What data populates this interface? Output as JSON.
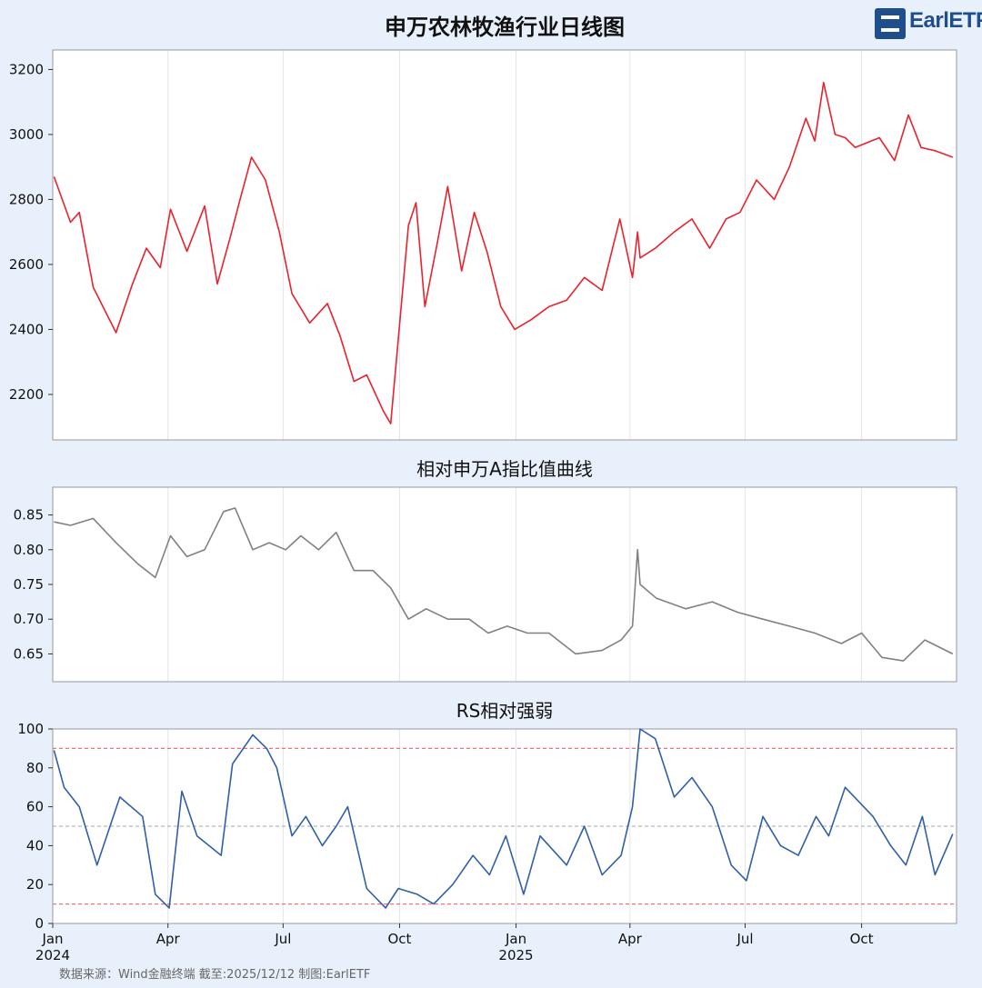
{
  "title": "申万农林牧渔行业日线图",
  "logo_text": "EarlETF",
  "footer": "数据来源：Wind金融终端 截至:2025/12/12 制图:EarlETF",
  "colors": {
    "background": "#e8f1fb",
    "price_line": "#e8222e",
    "ratio_line": "#808080",
    "rs_line": "#2f5fa8",
    "threshold_line": "#f07080",
    "mid_line": "#b8b8b8",
    "grid": "#e6e6e6"
  },
  "chart_data": [
    {
      "type": "line",
      "title": "申万农林牧渔行业日线图",
      "ylim": [
        2060,
        3260
      ],
      "yticks": [
        2200,
        2400,
        2600,
        2800,
        3000,
        3200
      ],
      "x": [
        "2024-01-02",
        "2024-01-15",
        "2024-01-22",
        "2024-02-02",
        "2024-02-20",
        "2024-03-04",
        "2024-03-15",
        "2024-03-26",
        "2024-04-03",
        "2024-04-16",
        "2024-04-30",
        "2024-05-10",
        "2024-05-20",
        "2024-05-28",
        "2024-06-06",
        "2024-06-17",
        "2024-06-28",
        "2024-07-08",
        "2024-07-22",
        "2024-08-05",
        "2024-08-15",
        "2024-08-26",
        "2024-09-05",
        "2024-09-18",
        "2024-09-24",
        "2024-10-08",
        "2024-10-14",
        "2024-10-21",
        "2024-10-31",
        "2024-11-08",
        "2024-11-19",
        "2024-11-29",
        "2024-12-09",
        "2024-12-20",
        "2024-12-31",
        "2025-01-13",
        "2025-01-27",
        "2025-02-10",
        "2025-02-24",
        "2025-03-10",
        "2025-03-24",
        "2025-04-03",
        "2025-04-07",
        "2025-04-09",
        "2025-04-21",
        "2025-05-06",
        "2025-05-20",
        "2025-06-03",
        "2025-06-16",
        "2025-06-27",
        "2025-07-10",
        "2025-07-24",
        "2025-08-05",
        "2025-08-18",
        "2025-08-25",
        "2025-09-01",
        "2025-09-10",
        "2025-09-18",
        "2025-09-26",
        "2025-10-15",
        "2025-10-27",
        "2025-11-07",
        "2025-11-17",
        "2025-11-28",
        "2025-12-12"
      ],
      "series": [
        {
          "values": [
            2870,
            2730,
            2760,
            2530,
            2390,
            2540,
            2650,
            2590,
            2770,
            2640,
            2780,
            2540,
            2680,
            2800,
            2930,
            2860,
            2700,
            2510,
            2420,
            2480,
            2380,
            2240,
            2260,
            2150,
            2110,
            2720,
            2790,
            2470,
            2670,
            2840,
            2580,
            2760,
            2640,
            2470,
            2400,
            2430,
            2470,
            2490,
            2560,
            2520,
            2740,
            2560,
            2700,
            2620,
            2650,
            2700,
            2740,
            2650,
            2740,
            2760,
            2860,
            2800,
            2900,
            3050,
            2980,
            3160,
            3000,
            2990,
            2960,
            2990,
            2920,
            3060,
            2960,
            2950,
            2930
          ]
        }
      ]
    },
    {
      "type": "line",
      "title": "相对申万A指比值曲线",
      "ylim": [
        0.61,
        0.89
      ],
      "yticks": [
        0.65,
        0.7,
        0.75,
        0.8,
        0.85
      ],
      "x": [
        "2024-01-02",
        "2024-01-15",
        "2024-02-02",
        "2024-02-20",
        "2024-03-08",
        "2024-03-22",
        "2024-04-03",
        "2024-04-16",
        "2024-04-30",
        "2024-05-15",
        "2024-05-24",
        "2024-06-07",
        "2024-06-20",
        "2024-07-03",
        "2024-07-15",
        "2024-07-29",
        "2024-08-12",
        "2024-08-26",
        "2024-09-10",
        "2024-09-24",
        "2024-10-08",
        "2024-10-22",
        "2024-11-08",
        "2024-11-25",
        "2024-12-10",
        "2024-12-25",
        "2025-01-10",
        "2025-01-27",
        "2025-02-17",
        "2025-03-10",
        "2025-03-25",
        "2025-04-03",
        "2025-04-07",
        "2025-04-09",
        "2025-04-22",
        "2025-05-15",
        "2025-06-05",
        "2025-06-25",
        "2025-07-15",
        "2025-08-05",
        "2025-08-25",
        "2025-09-15",
        "2025-10-01",
        "2025-10-17",
        "2025-11-03",
        "2025-11-20",
        "2025-12-12"
      ],
      "series": [
        {
          "values": [
            0.84,
            0.835,
            0.845,
            0.81,
            0.78,
            0.76,
            0.82,
            0.79,
            0.8,
            0.855,
            0.86,
            0.8,
            0.81,
            0.8,
            0.82,
            0.8,
            0.825,
            0.77,
            0.77,
            0.745,
            0.7,
            0.715,
            0.7,
            0.7,
            0.68,
            0.69,
            0.68,
            0.68,
            0.65,
            0.655,
            0.67,
            0.69,
            0.8,
            0.75,
            0.73,
            0.715,
            0.725,
            0.71,
            0.7,
            0.69,
            0.68,
            0.665,
            0.68,
            0.645,
            0.64,
            0.67,
            0.65
          ]
        }
      ]
    },
    {
      "type": "line",
      "title": "RS相对强弱",
      "ylim": [
        0,
        100
      ],
      "yticks": [
        0,
        20,
        40,
        60,
        80,
        100
      ],
      "reference_lines": [
        10,
        50,
        90
      ],
      "xticks": [
        {
          "date": "2024-01-01",
          "label": "Jan",
          "year": "2024"
        },
        {
          "date": "2024-04-01",
          "label": "Apr",
          "year": ""
        },
        {
          "date": "2024-07-01",
          "label": "Jul",
          "year": ""
        },
        {
          "date": "2024-10-01",
          "label": "Oct",
          "year": ""
        },
        {
          "date": "2025-01-01",
          "label": "Jan",
          "year": "2025"
        },
        {
          "date": "2025-04-01",
          "label": "Apr",
          "year": ""
        },
        {
          "date": "2025-07-01",
          "label": "Jul",
          "year": ""
        },
        {
          "date": "2025-10-01",
          "label": "Oct",
          "year": ""
        }
      ],
      "x": [
        "2024-01-02",
        "2024-01-10",
        "2024-01-22",
        "2024-02-05",
        "2024-02-23",
        "2024-03-12",
        "2024-03-22",
        "2024-04-02",
        "2024-04-12",
        "2024-04-24",
        "2024-05-13",
        "2024-05-22",
        "2024-06-07",
        "2024-06-18",
        "2024-06-26",
        "2024-07-08",
        "2024-07-19",
        "2024-08-01",
        "2024-08-12",
        "2024-08-21",
        "2024-09-05",
        "2024-09-20",
        "2024-09-30",
        "2024-10-15",
        "2024-10-28",
        "2024-11-12",
        "2024-11-28",
        "2024-12-11",
        "2024-12-24",
        "2025-01-07",
        "2025-01-20",
        "2025-02-10",
        "2025-02-24",
        "2025-03-10",
        "2025-03-25",
        "2025-04-03",
        "2025-04-09",
        "2025-04-21",
        "2025-05-06",
        "2025-05-20",
        "2025-06-05",
        "2025-06-20",
        "2025-07-02",
        "2025-07-15",
        "2025-07-29",
        "2025-08-12",
        "2025-08-26",
        "2025-09-05",
        "2025-09-18",
        "2025-10-10",
        "2025-10-24",
        "2025-11-05",
        "2025-11-18",
        "2025-11-28",
        "2025-12-12"
      ],
      "series": [
        {
          "values": [
            89,
            70,
            60,
            30,
            65,
            55,
            15,
            8,
            68,
            45,
            35,
            82,
            97,
            90,
            80,
            45,
            55,
            40,
            50,
            60,
            18,
            8,
            18,
            15,
            10,
            20,
            35,
            25,
            45,
            15,
            45,
            30,
            50,
            25,
            35,
            60,
            100,
            95,
            65,
            75,
            60,
            30,
            22,
            55,
            40,
            35,
            55,
            45,
            70,
            55,
            40,
            30,
            55,
            25,
            46
          ]
        }
      ]
    }
  ]
}
